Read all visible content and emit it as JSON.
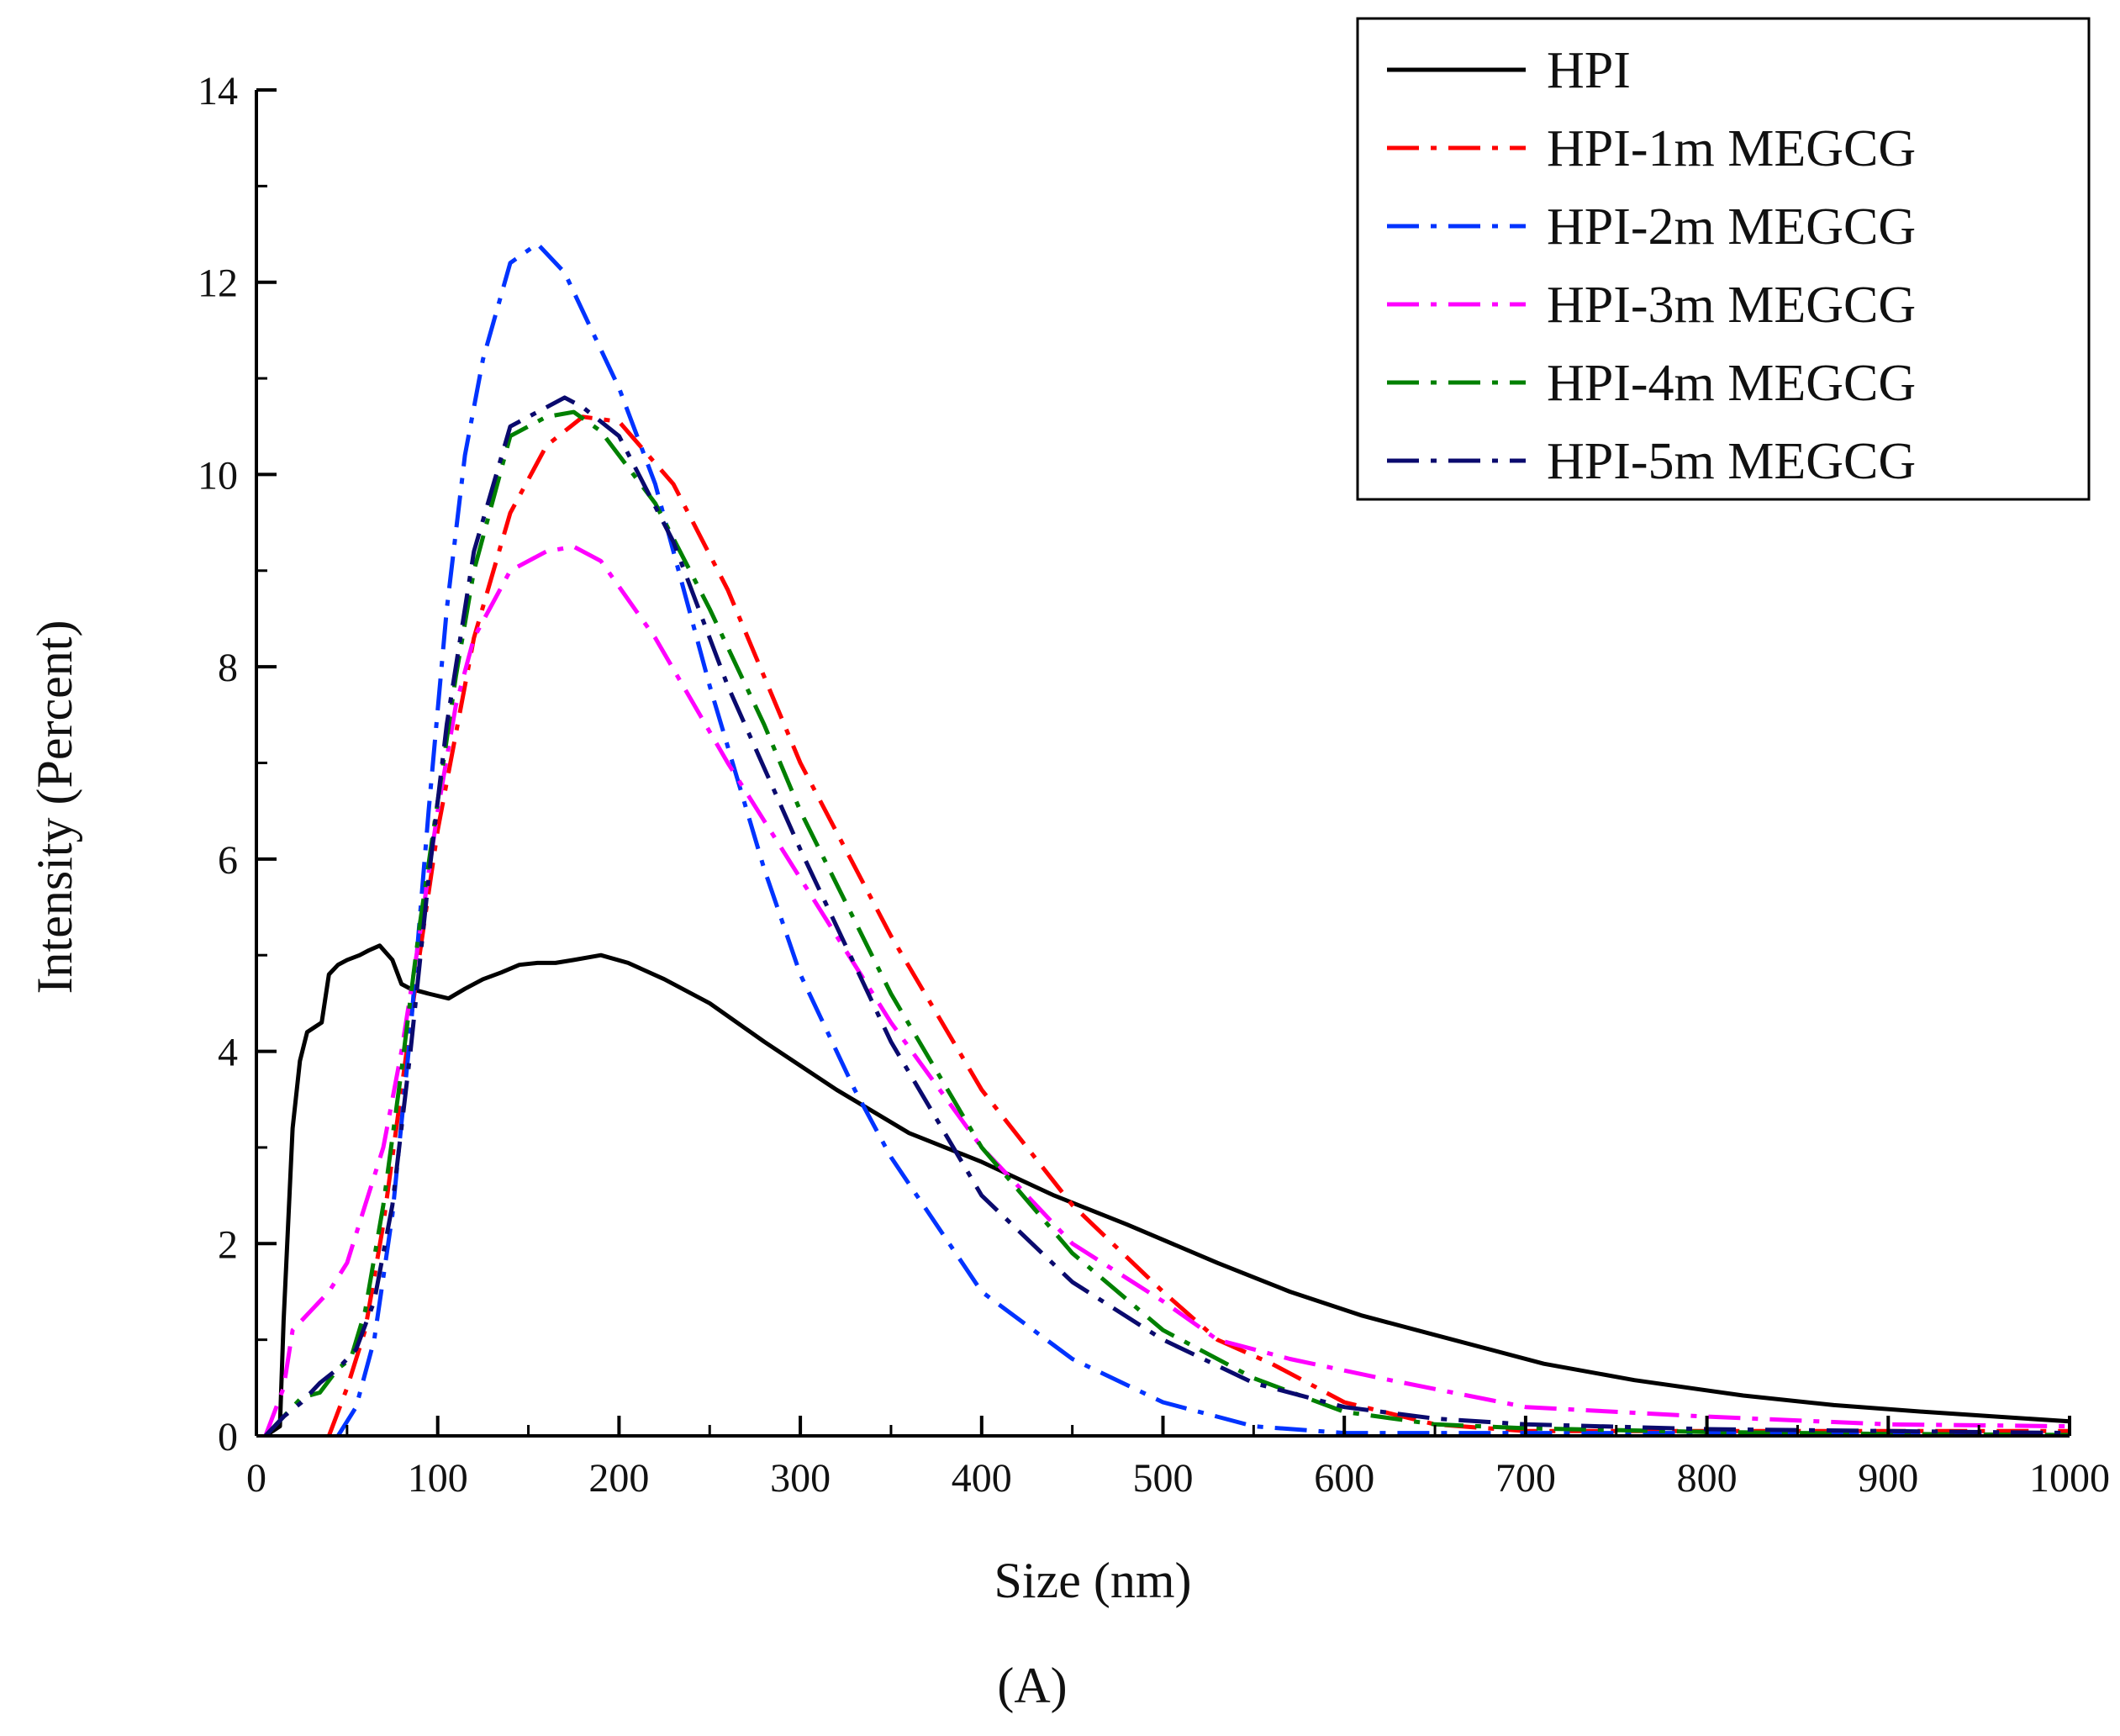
{
  "chart_data": {
    "type": "line",
    "title": "",
    "panel_label": "(A)",
    "xlabel": "Size (nm)",
    "ylabel": "Intensity (Percent)",
    "xlim": [
      0,
      1000
    ],
    "ylim": [
      0,
      14
    ],
    "xticks": [
      0,
      100,
      200,
      300,
      400,
      500,
      600,
      700,
      800,
      900,
      1000
    ],
    "yticks": [
      0,
      2,
      4,
      6,
      8,
      10,
      12,
      14
    ],
    "grid": false,
    "legend_position": "top-right",
    "series": [
      {
        "name": "HPI",
        "color": "#000000",
        "style": "solid",
        "x": [
          5,
          13,
          15,
          17,
          20,
          24,
          28,
          32,
          36,
          40,
          45,
          50,
          57,
          62,
          68,
          75,
          80,
          85,
          95,
          106,
          115,
          125,
          135,
          145,
          155,
          165,
          175,
          190,
          205,
          225,
          250,
          280,
          320,
          360,
          400,
          440,
          480,
          530,
          570,
          610,
          650,
          710,
          760,
          820,
          870,
          920,
          960,
          1000
        ],
        "y": [
          0,
          0.1,
          1.2,
          2.0,
          3.2,
          3.9,
          4.2,
          4.25,
          4.3,
          4.8,
          4.9,
          4.95,
          5.0,
          5.05,
          5.1,
          4.95,
          4.7,
          4.65,
          4.6,
          4.55,
          4.65,
          4.75,
          4.82,
          4.9,
          4.92,
          4.92,
          4.95,
          5.0,
          4.92,
          4.75,
          4.5,
          4.1,
          3.6,
          3.15,
          2.85,
          2.5,
          2.2,
          1.8,
          1.5,
          1.25,
          1.05,
          0.75,
          0.58,
          0.42,
          0.32,
          0.25,
          0.2,
          0.15
        ]
      },
      {
        "name": "HPI-1m MEGCG",
        "color": "#ff0000",
        "style": "dash-dot",
        "x": [
          40,
          50,
          60,
          70,
          80,
          90,
          100,
          120,
          140,
          160,
          180,
          200,
          230,
          260,
          300,
          350,
          400,
          450,
          500,
          530,
          560,
          600,
          650,
          700,
          800,
          900,
          1000
        ],
        "y": [
          0,
          0.5,
          1.1,
          2.2,
          3.6,
          5.0,
          6.3,
          8.3,
          9.6,
          10.3,
          10.6,
          10.55,
          9.9,
          8.8,
          7.0,
          5.2,
          3.6,
          2.4,
          1.5,
          1.0,
          0.75,
          0.35,
          0.12,
          0.05,
          0.05,
          0.05,
          0.05
        ]
      },
      {
        "name": "HPI-2m MEGCG",
        "color": "#0033ff",
        "style": "dash-dot",
        "x": [
          45,
          55,
          65,
          75,
          85,
          95,
          105,
          115,
          125,
          140,
          155,
          170,
          185,
          200,
          220,
          250,
          280,
          300,
          330,
          350,
          400,
          450,
          500,
          550,
          600,
          700,
          800,
          1000
        ],
        "y": [
          0,
          0.3,
          1.0,
          2.3,
          4.2,
          6.5,
          8.6,
          10.2,
          11.2,
          12.2,
          12.4,
          12.1,
          11.5,
          10.9,
          9.9,
          7.8,
          5.9,
          4.8,
          3.6,
          2.9,
          1.5,
          0.8,
          0.35,
          0.1,
          0.03,
          0.03,
          0.03,
          0.03
        ]
      },
      {
        "name": "HPI-3m MEGCG",
        "color": "#ff00ff",
        "style": "dash-dot",
        "x": [
          5,
          15,
          20,
          30,
          40,
          50,
          60,
          70,
          80,
          90,
          100,
          110,
          120,
          140,
          160,
          175,
          190,
          220,
          260,
          300,
          350,
          400,
          450,
          500,
          530,
          570,
          620,
          700,
          800,
          900,
          1000
        ],
        "y": [
          0,
          0.5,
          1.1,
          1.3,
          1.5,
          1.8,
          2.4,
          3.0,
          4.0,
          5.2,
          6.5,
          7.6,
          8.3,
          9.0,
          9.2,
          9.25,
          9.1,
          8.3,
          7.0,
          5.8,
          4.3,
          3.0,
          2.0,
          1.4,
          1.0,
          0.8,
          0.6,
          0.3,
          0.2,
          0.12,
          0.1
        ]
      },
      {
        "name": "HPI-4m MEGCG",
        "color": "#008000",
        "style": "dash-dot",
        "x": [
          5,
          15,
          25,
          35,
          45,
          52,
          60,
          70,
          80,
          90,
          100,
          110,
          120,
          140,
          160,
          175,
          190,
          220,
          250,
          280,
          300,
          350,
          400,
          450,
          500,
          550,
          600,
          650,
          700,
          800,
          900,
          1000
        ],
        "y": [
          0,
          0.2,
          0.4,
          0.45,
          0.7,
          0.8,
          1.3,
          2.4,
          3.8,
          5.3,
          6.6,
          7.9,
          9.0,
          10.4,
          10.6,
          10.65,
          10.45,
          9.7,
          8.6,
          7.4,
          6.5,
          4.6,
          3.0,
          1.9,
          1.1,
          0.6,
          0.25,
          0.12,
          0.08,
          0.04,
          0.02,
          0.01
        ]
      },
      {
        "name": "HPI-5m MEGCG",
        "color": "#0a0a6e",
        "style": "dash-dot",
        "x": [
          5,
          15,
          25,
          35,
          45,
          55,
          65,
          75,
          85,
          95,
          105,
          120,
          140,
          160,
          170,
          180,
          200,
          230,
          260,
          300,
          350,
          400,
          450,
          500,
          550,
          600,
          650,
          700,
          800,
          900,
          1000
        ],
        "y": [
          0,
          0.2,
          0.35,
          0.55,
          0.7,
          0.9,
          1.4,
          2.4,
          4.0,
          5.8,
          7.4,
          9.2,
          10.5,
          10.7,
          10.8,
          10.7,
          10.4,
          9.3,
          7.8,
          6.1,
          4.1,
          2.5,
          1.6,
          1.0,
          0.55,
          0.3,
          0.18,
          0.12,
          0.07,
          0.05,
          0.03
        ]
      }
    ]
  }
}
